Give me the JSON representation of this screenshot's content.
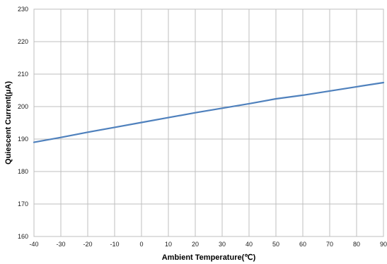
{
  "chart_data": {
    "type": "line",
    "xlabel": "Ambient Temperature(℃)",
    "ylabel": "Quiescent Current(μA)",
    "xlim": [
      -40,
      90
    ],
    "ylim": [
      160,
      230
    ],
    "x_ticks": [
      -40,
      -30,
      -20,
      -10,
      0,
      10,
      20,
      30,
      40,
      50,
      60,
      70,
      80,
      90
    ],
    "y_ticks": [
      160,
      170,
      180,
      190,
      200,
      210,
      220,
      230
    ],
    "grid": true,
    "series": [
      {
        "color": "#4f81bd",
        "x": [
          -40,
          -30,
          -20,
          -10,
          0,
          10,
          20,
          30,
          40,
          50,
          60,
          70,
          80,
          90
        ],
        "y": [
          189.0,
          190.5,
          192.1,
          193.6,
          195.1,
          196.6,
          198.1,
          199.5,
          200.9,
          202.4,
          203.5,
          204.8,
          206.1,
          207.4
        ]
      }
    ]
  }
}
